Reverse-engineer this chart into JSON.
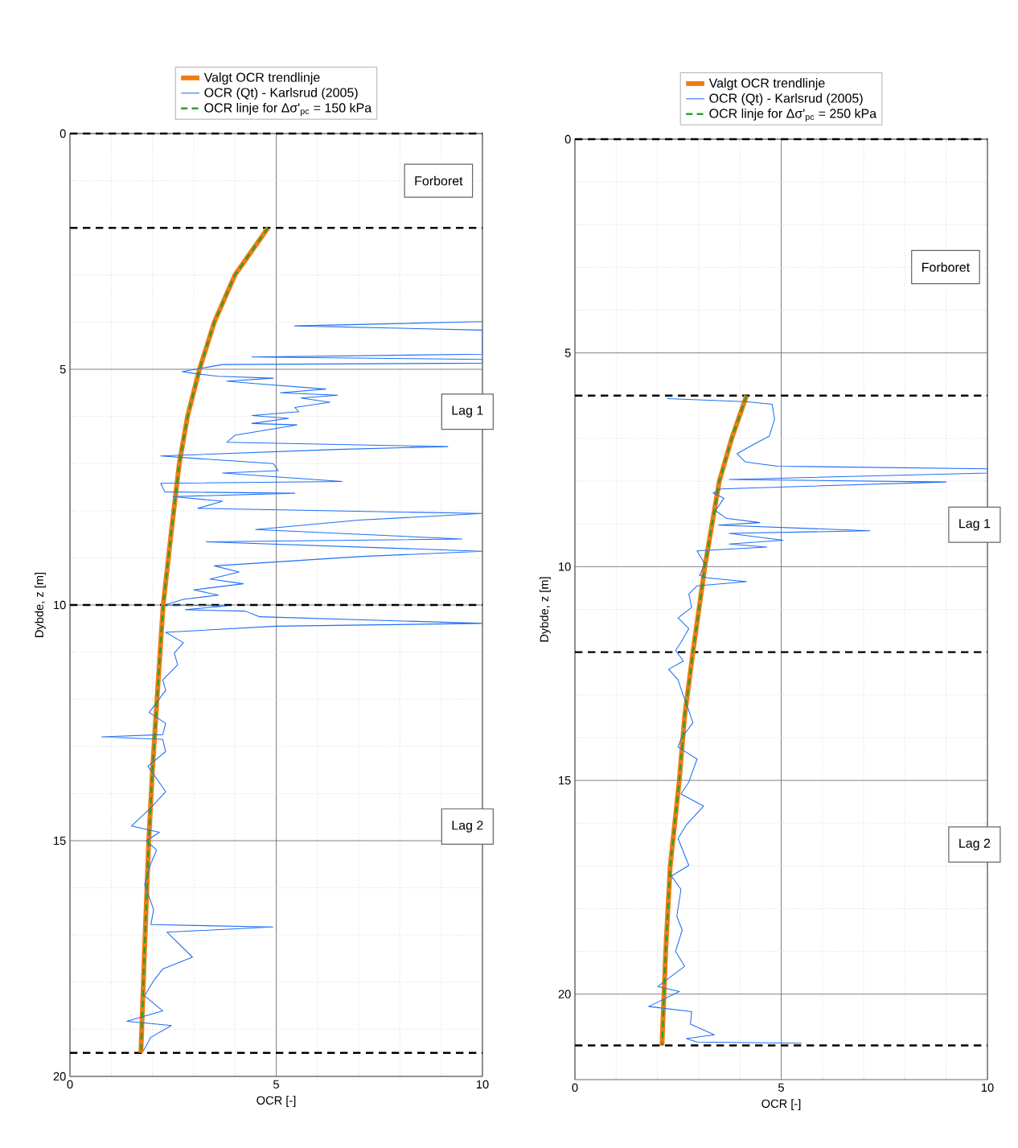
{
  "chart_data": [
    {
      "type": "line",
      "xlabel": "OCR [-]",
      "ylabel": "Dybde, z [m]",
      "xlim": [
        0,
        10
      ],
      "ylim": [
        20,
        0
      ],
      "xticks": [
        0,
        5,
        10
      ],
      "yticks": [
        0,
        5,
        10,
        15,
        20
      ],
      "grid": true,
      "legend": "top",
      "series": [
        {
          "name": "Valgt OCR trendlinje",
          "color": "#f07d12",
          "line_style": "solid",
          "x": [
            4.8,
            4.0,
            3.5,
            3.14,
            2.85,
            2.65,
            2.45,
            2.26,
            2.11,
            2.0,
            1.91,
            1.8,
            1.72
          ],
          "values": [
            2,
            3,
            4,
            5,
            6,
            7,
            8.5,
            10,
            12,
            13.5,
            15,
            17.5,
            19.5
          ]
        },
        {
          "name": "OCR (Qt) - Karlsrud (2005)",
          "color": "#1e6ff5",
          "line_style": "solid",
          "x": [
            10,
            5.45,
            10,
            10,
            4.41,
            10,
            10,
            3.7,
            2.72,
            3.11,
            3.6,
            4.93,
            3.8,
            4.41,
            6.2,
            5.1,
            6.49,
            5.6,
            6.3,
            5.45,
            5.55,
            4.41,
            5.3,
            4.41,
            5.5,
            4.0,
            3.8,
            9.16,
            6.5,
            2.2,
            3.2,
            4.93,
            5.05,
            3.7,
            6.6,
            2.2,
            2.3,
            5.45,
            2.5,
            3.7,
            3.1,
            10,
            7.0,
            4.5,
            9.5,
            3.3,
            10,
            7.1,
            3.5,
            4.1,
            3.4,
            4.2,
            3.0,
            3.6,
            2.75,
            2.3,
            3.8,
            2.8,
            4.25,
            4.6,
            10,
            5.0,
            2.32,
            2.75,
            2.53,
            2.61,
            2.25,
            2.32,
            1.92,
            2.32,
            2.25,
            0.77,
            2.25,
            2.32,
            1.89,
            2.32,
            1.95,
            1.49,
            2.17,
            1.85,
            2.1,
            1.95,
            1.81,
            2.03,
            1.96,
            4.92,
            2.35,
            2.97,
            2.25,
            2.03,
            1.81,
            2.25,
            1.38,
            2.46,
            1.96,
            1.78
          ],
          "values": [
            3.99,
            4.08,
            4.17,
            4.68,
            4.74,
            4.79,
            4.87,
            4.9,
            5.05,
            5.1,
            5.15,
            5.19,
            5.25,
            5.3,
            5.42,
            5.5,
            5.55,
            5.61,
            5.7,
            5.81,
            5.9,
            5.98,
            6.04,
            6.15,
            6.18,
            6.4,
            6.55,
            6.64,
            6.7,
            6.84,
            6.9,
            7.0,
            7.15,
            7.2,
            7.38,
            7.42,
            7.6,
            7.63,
            7.7,
            7.8,
            7.95,
            8.06,
            8.2,
            8.4,
            8.6,
            8.66,
            8.86,
            8.97,
            9.17,
            9.3,
            9.45,
            9.55,
            9.68,
            9.79,
            9.88,
            10.0,
            10.02,
            10.1,
            10.13,
            10.25,
            10.39,
            10.45,
            10.58,
            10.8,
            11.02,
            11.27,
            11.59,
            11.81,
            12.28,
            12.51,
            12.75,
            12.8,
            12.85,
            13.11,
            13.42,
            13.96,
            14.31,
            14.69,
            14.82,
            15.0,
            15.2,
            15.51,
            15.93,
            16.46,
            16.78,
            16.83,
            16.94,
            17.47,
            17.72,
            17.97,
            18.29,
            18.61,
            18.83,
            18.92,
            19.17,
            19.46
          ]
        },
        {
          "name": "OCR linje for Δσ'$_{pc}$ = 150 kPa",
          "color": "#2e9e2e",
          "line_style": "dashed",
          "x": [
            4.8,
            4.0,
            3.5,
            3.14,
            2.85,
            2.65,
            2.45,
            2.26,
            2.11,
            2.0,
            1.91,
            1.8,
            1.72
          ],
          "values": [
            2,
            3,
            4,
            5,
            6,
            7,
            8.5,
            10,
            12,
            13.5,
            15,
            17.5,
            19.5
          ]
        }
      ],
      "ref_lines": [
        {
          "axis": "y",
          "value": 0,
          "color": "#000000",
          "line_style": "dashed"
        },
        {
          "axis": "y",
          "value": 2,
          "color": "#000000",
          "line_style": "dashed"
        },
        {
          "axis": "y",
          "value": 10,
          "color": "#000000",
          "line_style": "dashed"
        },
        {
          "axis": "y",
          "value": 19.5,
          "color": "#000000",
          "line_style": "dashed"
        }
      ],
      "annotations": [
        "Forboret",
        "Lag 1",
        "Lag 2"
      ]
    },
    {
      "type": "line",
      "xlabel": "OCR [-]",
      "ylabel": "Dybde, z [m]",
      "xlim": [
        0,
        10
      ],
      "ylim": [
        22,
        0
      ],
      "xticks": [
        0,
        5,
        10
      ],
      "yticks": [
        0,
        5,
        10,
        15,
        20
      ],
      "grid": true,
      "legend": "top",
      "series": [
        {
          "name": "Valgt OCR trendlinje",
          "color": "#f07d12",
          "line_style": "solid",
          "x": [
            4.16,
            3.8,
            3.5,
            3.15,
            2.86,
            2.66,
            2.53,
            2.31,
            2.2,
            2.11
          ],
          "values": [
            6,
            7,
            8,
            10,
            12,
            13.5,
            15,
            17,
            19,
            21.2
          ]
        },
        {
          "name": "OCR (Qt) - Karlsrud (2005)",
          "color": "#1e6ff5",
          "line_style": "solid",
          "x": [
            2.24,
            4.13,
            4.78,
            4.84,
            4.71,
            4.39,
            3.93,
            4.13,
            4.91,
            10,
            10,
            3.74,
            9.0,
            3.54,
            3.35,
            3.61,
            3.41,
            3.67,
            4.48,
            3.48,
            7.15,
            3.74,
            5.04,
            3.74,
            4.65,
            2.96,
            3.15,
            3.02,
            3.2,
            4.16,
            2.96,
            2.76,
            2.83,
            2.5,
            2.76,
            2.57,
            2.44,
            2.63,
            2.27,
            2.5,
            2.63,
            2.73,
            2.86,
            2.57,
            2.5,
            2.96,
            2.76,
            2.57,
            3.12,
            2.7,
            2.5,
            2.76,
            2.34,
            2.57,
            2.47,
            2.6,
            2.44,
            2.66,
            2.01,
            2.53,
            1.79,
            2.83,
            2.8,
            3.38,
            2.7,
            2.96,
            5.49
          ],
          "values": [
            6.07,
            6.14,
            6.2,
            6.55,
            6.95,
            7.11,
            7.36,
            7.55,
            7.65,
            7.71,
            7.81,
            7.96,
            8.02,
            8.18,
            8.28,
            8.4,
            8.69,
            8.87,
            8.97,
            9.03,
            9.16,
            9.22,
            9.38,
            9.47,
            9.54,
            9.63,
            9.94,
            10.2,
            10.26,
            10.35,
            10.45,
            10.64,
            10.95,
            11.2,
            11.45,
            11.77,
            11.96,
            12.21,
            12.4,
            12.65,
            13.02,
            13.28,
            13.65,
            14.03,
            14.22,
            14.5,
            15.04,
            15.32,
            15.6,
            16.04,
            16.36,
            16.99,
            17.24,
            17.55,
            18.18,
            18.5,
            19.0,
            19.35,
            19.82,
            19.94,
            20.29,
            20.41,
            20.7,
            20.95,
            21.04,
            21.12,
            21.15
          ]
        },
        {
          "name": "OCR linje for Δσ'$_{pc}$ = 250 kPa",
          "color": "#2e9e2e",
          "line_style": "dashed",
          "x": [
            4.16,
            3.8,
            3.5,
            3.15,
            2.86,
            2.66,
            2.53,
            2.31,
            2.2,
            2.11
          ],
          "values": [
            6,
            7,
            8,
            10,
            12,
            13.5,
            15,
            17,
            19,
            21.2
          ]
        }
      ],
      "ref_lines": [
        {
          "axis": "y",
          "value": 0,
          "color": "#000000",
          "line_style": "dashed"
        },
        {
          "axis": "y",
          "value": 6,
          "color": "#000000",
          "line_style": "dashed"
        },
        {
          "axis": "y",
          "value": 12,
          "color": "#000000",
          "line_style": "dashed"
        },
        {
          "axis": "y",
          "value": 21.2,
          "color": "#000000",
          "line_style": "dashed"
        }
      ],
      "annotations": [
        "Forboret",
        "Lag 1",
        "Lag 2"
      ]
    }
  ]
}
